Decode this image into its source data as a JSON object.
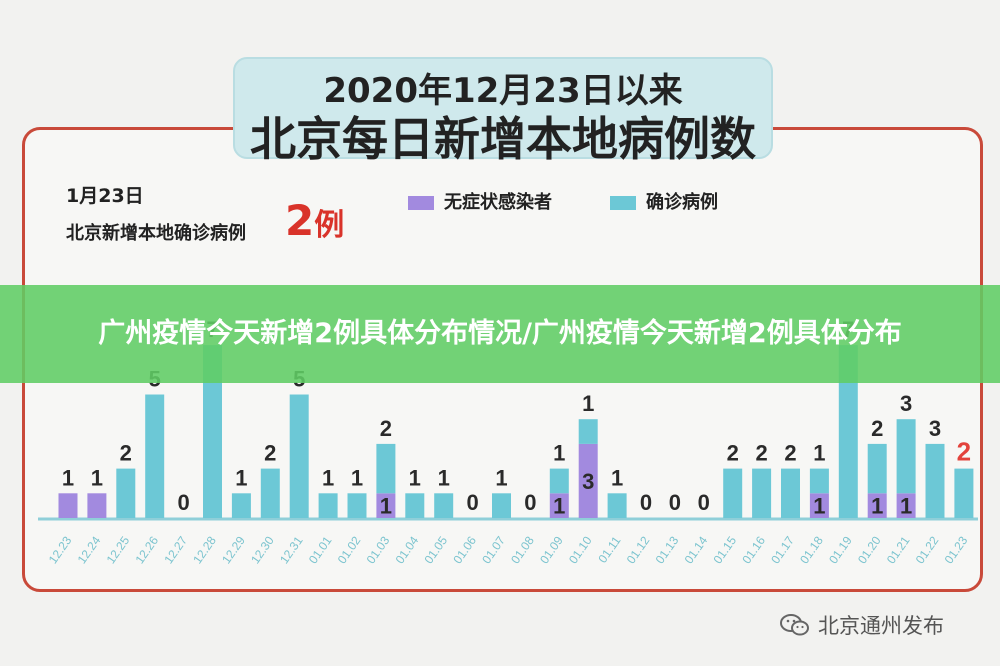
{
  "header": {
    "title_line1": "2020年12月23日以来",
    "title_line2": "北京每日新增本地病例数"
  },
  "summary": {
    "date": "1月23日",
    "label": "北京新增本地确诊病例",
    "number": "2",
    "unit": "例"
  },
  "legend": {
    "asymptomatic": "无症状感染者",
    "confirmed": "确诊病例"
  },
  "colors": {
    "confirmed": "#6cc8d6",
    "asymptomatic": "#a28adf",
    "highlight": "#e3433c",
    "banner": "#60cd64"
  },
  "banner": {
    "text": "广州疫情今天新增2例具体分布情况/广州疫情今天新增2例具体分布"
  },
  "watermark": {
    "text": "北京通州发布"
  },
  "chart_data": {
    "type": "bar",
    "stacked": true,
    "categories": [
      "12.23",
      "12.24",
      "12.25",
      "12.26",
      "12.27",
      "12.28",
      "12.29",
      "12.30",
      "12.31",
      "01.01",
      "01.02",
      "01.03",
      "01.04",
      "01.05",
      "01.06",
      "01.07",
      "01.08",
      "01.09",
      "01.10",
      "01.11",
      "01.12",
      "01.13",
      "01.14",
      "01.15",
      "01.16",
      "01.17",
      "01.18",
      "01.19",
      "01.20",
      "01.21",
      "01.22",
      "01.23"
    ],
    "series": [
      {
        "name": "无症状感染者",
        "values": [
          1,
          1,
          0,
          0,
          0,
          0,
          0,
          0,
          0,
          0,
          0,
          1,
          0,
          0,
          0,
          0,
          0,
          1,
          3,
          0,
          0,
          0,
          0,
          0,
          0,
          0,
          1,
          0,
          1,
          1,
          0,
          0
        ]
      },
      {
        "name": "确诊病例",
        "values": [
          0,
          0,
          2,
          5,
          0,
          7,
          1,
          2,
          5,
          1,
          1,
          2,
          1,
          1,
          0,
          1,
          0,
          1,
          1,
          1,
          0,
          0,
          0,
          2,
          2,
          2,
          1,
          7,
          2,
          3,
          3,
          2
        ]
      }
    ],
    "ylim": [
      0,
      7
    ],
    "legend_position": "top",
    "grid": false
  }
}
